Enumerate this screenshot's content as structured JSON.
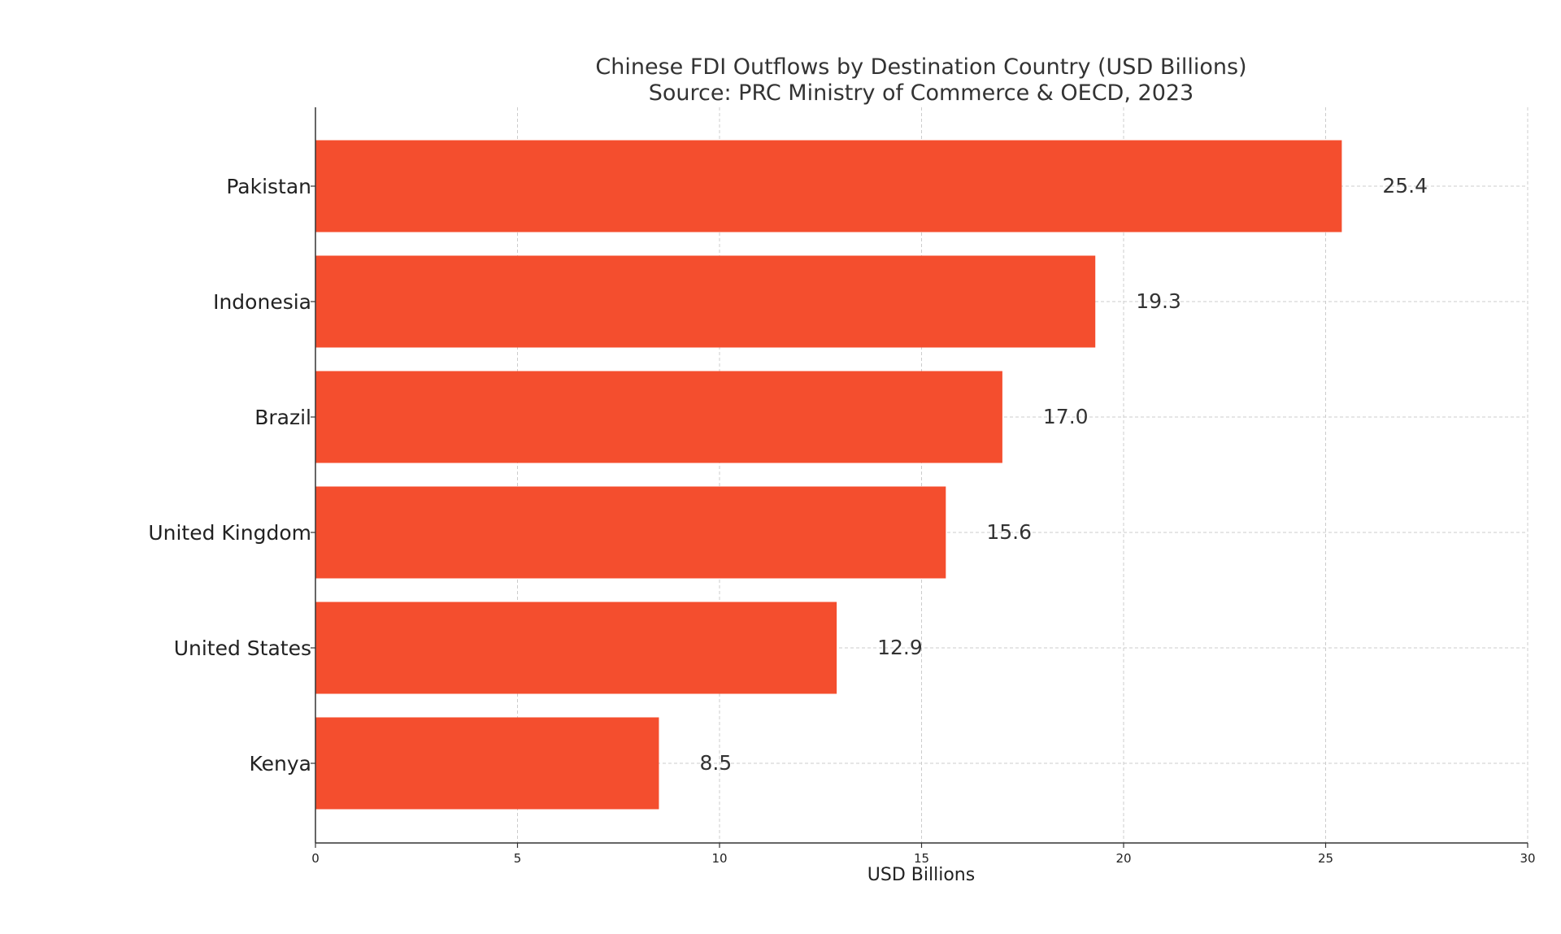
{
  "chart_data": {
    "type": "bar",
    "orientation": "horizontal",
    "title": "Chinese FDI Outflows by Destination Country (USD Billions)",
    "subtitle": "Source: PRC Ministry of Commerce & OECD, 2023",
    "xlabel": "USD Billions",
    "ylabel": "",
    "categories": [
      "Pakistan",
      "Indonesia",
      "Brazil",
      "United Kingdom",
      "United States",
      "Kenya"
    ],
    "values": [
      25.4,
      19.3,
      17.0,
      15.6,
      12.9,
      8.5
    ],
    "value_labels": [
      "25.4",
      "19.3",
      "17.0",
      "15.6",
      "12.9",
      "8.5"
    ],
    "xlim": [
      0,
      30
    ],
    "xticks": [
      0,
      5,
      10,
      15,
      20,
      25,
      30
    ],
    "grid": true,
    "bar_color": "#F44E2E"
  }
}
